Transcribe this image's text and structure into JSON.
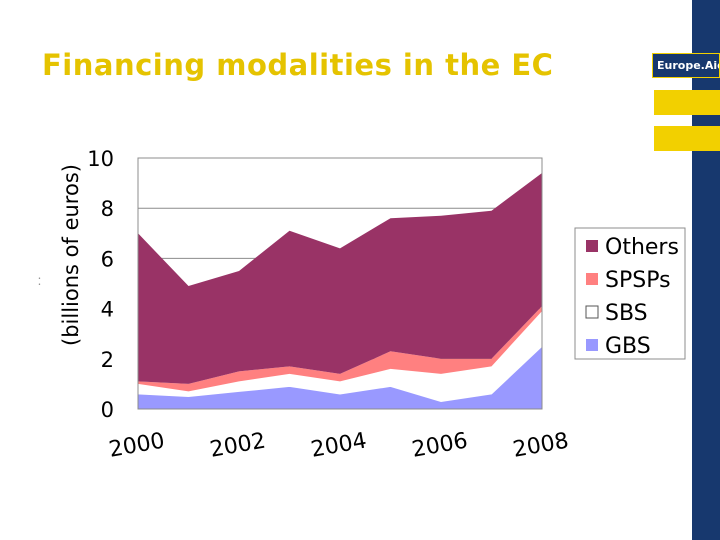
{
  "title": "Financing modalities in the EC",
  "brand": {
    "label": "Europe.Aid"
  },
  "colors": {
    "accent_yellow": "#e5c300",
    "bar_yellow": "#f2d000",
    "navy": "#17386e"
  },
  "chart_data": {
    "type": "area",
    "stacked": true,
    "title": "",
    "ylabel": "(billions of euros)",
    "xlabel": "",
    "ylim": [
      0,
      10
    ],
    "yticks": [
      0,
      2,
      4,
      6,
      8,
      10
    ],
    "xlim": [
      2000,
      2008
    ],
    "x": [
      2000,
      2001,
      2002,
      2003,
      2004,
      2005,
      2006,
      2007,
      2008
    ],
    "x_tick_labels": [
      "2000",
      "2002",
      "2004",
      "2006",
      "2008"
    ],
    "x_tick_values": [
      2000,
      2002,
      2004,
      2006,
      2008
    ],
    "grid": "horizontal",
    "legend_position": "right",
    "series": [
      {
        "name": "GBS",
        "color": "#9999ff",
        "values": [
          0.6,
          0.5,
          0.7,
          0.9,
          0.6,
          0.9,
          0.3,
          0.6,
          2.5
        ]
      },
      {
        "name": "SBS",
        "color": "#ffffff",
        "values": [
          0.4,
          0.2,
          0.4,
          0.5,
          0.5,
          0.7,
          1.1,
          1.1,
          1.4
        ]
      },
      {
        "name": "SPSPs",
        "color": "#ff8080",
        "values": [
          0.1,
          0.3,
          0.4,
          0.3,
          0.3,
          0.7,
          0.6,
          0.3,
          0.2
        ]
      },
      {
        "name": "Others",
        "color": "#993366",
        "values": [
          5.9,
          3.9,
          4.0,
          5.4,
          5.0,
          5.3,
          5.7,
          5.9,
          5.3
        ]
      }
    ],
    "legend_order": [
      "Others",
      "SPSPs",
      "SBS",
      "GBS"
    ]
  }
}
